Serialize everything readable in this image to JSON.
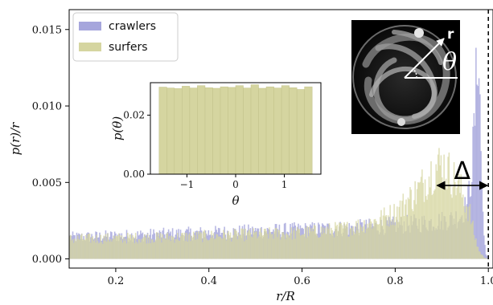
{
  "chart_data": [
    {
      "type": "bar",
      "subtype": "histogram",
      "xlabel": "r/R",
      "ylabel": "p(r)/r",
      "xlim": [
        0.1,
        1.01
      ],
      "ylim": [
        -0.0006,
        0.0163
      ],
      "xticks": [
        0.2,
        0.4,
        0.6,
        0.8,
        1.0
      ],
      "xtick_labels": [
        "0.2",
        "0.4",
        "0.6",
        "0.8",
        "1.0"
      ],
      "yticks": [
        0.0,
        0.005,
        0.01,
        0.015
      ],
      "ytick_labels": [
        "0.000",
        "0.005",
        "0.010",
        "0.015"
      ],
      "legend_position": "top-left",
      "series": [
        {
          "name": "crawlers",
          "color": "#a6a6dc",
          "profile": {
            "x": [
              0.1,
              0.3,
              0.5,
              0.7,
              0.8,
              0.88,
              0.92,
              0.94,
              0.955,
              0.965,
              0.972,
              0.978,
              0.984,
              0.99,
              0.995,
              1.0
            ],
            "y": [
              0.0014,
              0.0016,
              0.0018,
              0.002,
              0.0022,
              0.0024,
              0.0026,
              0.0028,
              0.0036,
              0.006,
              0.01,
              0.015,
              0.007,
              0.0015,
              0.0003,
              0.0
            ]
          }
        },
        {
          "name": "surfers",
          "color": "#d5d5a0",
          "profile": {
            "x": [
              0.1,
              0.3,
              0.5,
              0.6,
              0.7,
              0.75,
              0.8,
              0.85,
              0.88,
              0.9,
              0.92,
              0.94,
              0.96,
              0.97,
              0.98,
              0.99,
              1.0
            ],
            "y": [
              0.0013,
              0.0014,
              0.0016,
              0.0017,
              0.002,
              0.0024,
              0.003,
              0.0045,
              0.0058,
              0.0062,
              0.0055,
              0.0045,
              0.003,
              0.0015,
              0.0005,
              0.0001,
              0.0
            ]
          }
        }
      ],
      "annotations": [
        {
          "text": "Δ",
          "kind": "double-arrow",
          "from_x": 0.89,
          "to_x": 0.998,
          "y": 0.0048
        },
        {
          "kind": "vertical-dashed-line",
          "x": 1.0
        }
      ],
      "inset_image": {
        "icon": "crawler-trajectory-photo",
        "labels": {
          "radius": "r",
          "angle": "θ"
        }
      }
    },
    {
      "type": "bar",
      "subtype": "histogram",
      "location": "inset",
      "xlabel": "θ",
      "ylabel": "p(θ)",
      "xlim": [
        -1.75,
        1.75
      ],
      "ylim": [
        0,
        0.031
      ],
      "xticks": [
        -1,
        0,
        1
      ],
      "xtick_labels": [
        "−1",
        "0",
        "1"
      ],
      "yticks": [
        0.0,
        0.02
      ],
      "ytick_labels": [
        "0.00",
        "0.02"
      ],
      "bin_edges": [
        -1.571,
        -1.414,
        -1.257,
        -1.1,
        -0.943,
        -0.786,
        -0.628,
        -0.471,
        -0.314,
        -0.157,
        0.0,
        0.157,
        0.314,
        0.471,
        0.628,
        0.786,
        0.943,
        1.1,
        1.257,
        1.414,
        1.571
      ],
      "values": [
        0.0295,
        0.0292,
        0.029,
        0.0298,
        0.0292,
        0.03,
        0.0293,
        0.0291,
        0.0296,
        0.0294,
        0.03,
        0.0292,
        0.0303,
        0.0291,
        0.0296,
        0.0292,
        0.03,
        0.0293,
        0.0287,
        0.0296
      ],
      "series": [
        {
          "color": "#d5d5a0"
        }
      ]
    }
  ]
}
